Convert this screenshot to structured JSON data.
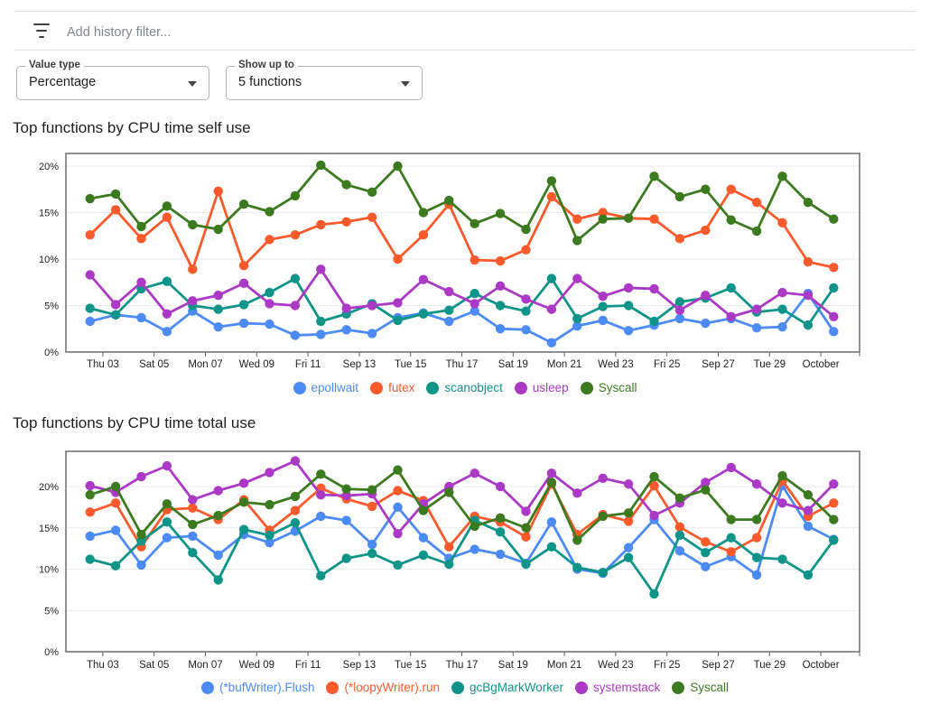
{
  "filter_bar": {
    "placeholder": "Add history filter...",
    "icon": "filter-list-icon"
  },
  "controls": [
    {
      "label": "Value type",
      "value": "Percentage",
      "icon": "dropdown-arrow-icon"
    },
    {
      "label": "Show up to",
      "value": "5 functions",
      "icon": "dropdown-arrow-icon"
    }
  ],
  "chart_data": [
    {
      "type": "line",
      "title": "Top functions by CPU time self use",
      "x_tick_labels": [
        "Thu 03",
        "Sat 05",
        "Mon 07",
        "Wed 09",
        "Fri 11",
        "Sep 13",
        "Tue 15",
        "Thu 17",
        "Sat 19",
        "Mon 21",
        "Wed 23",
        "Fri 25",
        "Sep 27",
        "Tue 29",
        "October"
      ],
      "y_tick_labels": [
        "0%",
        "5%",
        "10%",
        "15%",
        "20%"
      ],
      "ylim": [
        0,
        21.4
      ],
      "grid": true,
      "legend_position": "bottom",
      "series": [
        {
          "name": "epollwait",
          "color": "#4c8bf5",
          "values": [
            3.3,
            4.0,
            3.7,
            2.2,
            4.4,
            2.7,
            3.1,
            3.0,
            1.8,
            1.9,
            2.4,
            2.0,
            3.7,
            4.2,
            3.3,
            4.4,
            2.5,
            2.4,
            1.0,
            2.8,
            3.4,
            2.3,
            2.9,
            3.6,
            3.1,
            3.6,
            2.6,
            2.7,
            6.3,
            2.2
          ]
        },
        {
          "name": "futex",
          "color": "#fc5a2b",
          "values": [
            12.6,
            15.3,
            12.2,
            14.5,
            8.9,
            17.3,
            9.3,
            12.1,
            12.6,
            13.7,
            14.0,
            14.5,
            10.0,
            12.6,
            15.9,
            9.9,
            9.8,
            11.0,
            16.7,
            14.3,
            15.0,
            14.4,
            14.3,
            12.2,
            13.1,
            17.5,
            16.1,
            13.9,
            9.7,
            9.1
          ]
        },
        {
          "name": "scanobject",
          "color": "#0e9488",
          "values": [
            4.7,
            4.0,
            6.8,
            7.6,
            5.0,
            4.6,
            5.1,
            6.4,
            7.9,
            3.3,
            4.1,
            5.2,
            3.4,
            4.1,
            4.5,
            6.3,
            5.0,
            4.4,
            7.9,
            3.6,
            4.9,
            5.0,
            3.3,
            5.4,
            5.8,
            6.9,
            4.3,
            4.6,
            2.9,
            6.9
          ]
        },
        {
          "name": "usleep",
          "color": "#ac39c6",
          "values": [
            8.3,
            5.1,
            7.5,
            4.1,
            5.5,
            6.1,
            7.4,
            5.2,
            5.0,
            8.9,
            4.7,
            5.0,
            5.3,
            7.8,
            6.5,
            5.2,
            7.1,
            5.7,
            4.6,
            7.9,
            6.0,
            6.9,
            6.8,
            4.5,
            6.1,
            3.8,
            4.6,
            6.4,
            6.1,
            3.8
          ]
        },
        {
          "name": "Syscall",
          "color": "#3b7a1f",
          "values": [
            16.5,
            17.0,
            13.5,
            15.7,
            13.7,
            13.2,
            15.9,
            15.1,
            16.8,
            20.1,
            18.0,
            17.2,
            20.0,
            15.0,
            16.3,
            13.8,
            14.9,
            13.2,
            18.4,
            12.0,
            14.3,
            14.4,
            18.9,
            16.7,
            17.5,
            14.2,
            13.0,
            18.9,
            16.1,
            14.3
          ]
        }
      ]
    },
    {
      "type": "line",
      "title": "Top functions by CPU time total use",
      "x_tick_labels": [
        "Thu 03",
        "Sat 05",
        "Mon 07",
        "Wed 09",
        "Fri 11",
        "Sep 13",
        "Tue 15",
        "Thu 17",
        "Sat 19",
        "Mon 21",
        "Wed 23",
        "Fri 25",
        "Sep 27",
        "Tue 29",
        "October"
      ],
      "y_tick_labels": [
        "0%",
        "5%",
        "10%",
        "15%",
        "20%"
      ],
      "ylim": [
        0,
        24.3
      ],
      "grid": true,
      "legend_position": "bottom",
      "series": [
        {
          "name": "(*bufWriter).Flush",
          "color": "#4c8bf5",
          "values": [
            14.0,
            14.7,
            10.5,
            13.8,
            14.0,
            11.7,
            14.2,
            13.2,
            14.6,
            16.4,
            15.9,
            13.0,
            17.5,
            13.8,
            11.3,
            12.4,
            11.8,
            10.7,
            15.7,
            10.0,
            9.5,
            12.6,
            16.0,
            12.2,
            10.3,
            11.5,
            9.3,
            20.1,
            15.2,
            13.6
          ]
        },
        {
          "name": "(*loopyWriter).run",
          "color": "#fc5a2b",
          "values": [
            16.9,
            18.0,
            12.7,
            17.2,
            17.4,
            16.0,
            18.4,
            14.7,
            17.1,
            19.8,
            18.5,
            17.6,
            19.5,
            18.3,
            12.7,
            16.4,
            15.7,
            13.9,
            20.3,
            14.2,
            16.6,
            15.8,
            20.1,
            15.1,
            13.3,
            12.1,
            13.8,
            20.7,
            16.4,
            18.0
          ]
        },
        {
          "name": "gcBgMarkWorker",
          "color": "#0e9488",
          "values": [
            11.2,
            10.4,
            13.4,
            15.7,
            12.0,
            8.7,
            14.8,
            14.1,
            15.6,
            9.2,
            11.3,
            11.9,
            10.5,
            11.7,
            10.6,
            15.9,
            14.5,
            10.6,
            12.7,
            10.2,
            9.6,
            11.4,
            7.0,
            14.1,
            12.0,
            13.8,
            11.4,
            11.2,
            9.3,
            13.5
          ]
        },
        {
          "name": "systemstack",
          "color": "#ac39c6",
          "values": [
            20.1,
            19.3,
            21.2,
            22.5,
            18.4,
            19.5,
            20.4,
            21.7,
            23.1,
            19.0,
            18.9,
            19.1,
            14.3,
            17.9,
            20.0,
            21.6,
            20.0,
            17.0,
            21.6,
            19.2,
            21.0,
            20.3,
            16.5,
            18.0,
            20.5,
            22.3,
            20.3,
            18.0,
            17.1,
            20.3
          ]
        },
        {
          "name": "Syscall",
          "color": "#3b7a1f",
          "values": [
            19.0,
            20.0,
            14.2,
            17.9,
            15.4,
            16.5,
            18.1,
            17.8,
            18.8,
            21.5,
            19.7,
            19.6,
            22.0,
            17.1,
            19.3,
            15.2,
            16.2,
            15.0,
            20.5,
            13.5,
            16.4,
            16.8,
            21.2,
            18.6,
            19.6,
            16.0,
            16.0,
            21.3,
            19.0,
            16.0
          ]
        }
      ]
    }
  ]
}
